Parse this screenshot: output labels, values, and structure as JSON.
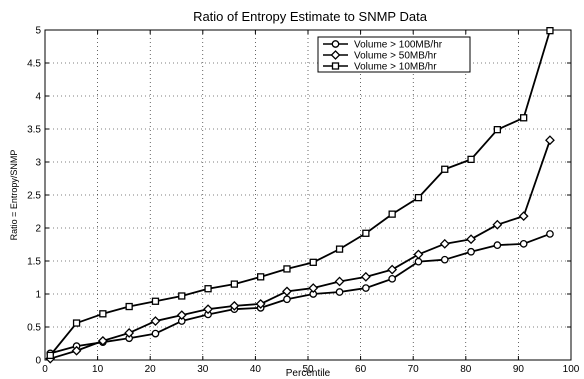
{
  "chart_data": {
    "type": "line",
    "title": "Ratio of Entropy Estimate to SNMP Data",
    "xlabel": "Percentile",
    "ylabel": "Ratio = Entropy/SNMP",
    "xlim": [
      0,
      100
    ],
    "ylim": [
      0,
      5
    ],
    "xticks": [
      0,
      10,
      20,
      30,
      40,
      50,
      60,
      70,
      80,
      90,
      100
    ],
    "yticks": [
      0,
      0.5,
      1,
      1.5,
      2,
      2.5,
      3,
      3.5,
      4,
      4.5,
      5
    ],
    "grid": true,
    "legend_position": "top-right",
    "x": [
      1,
      6,
      11,
      16,
      21,
      26,
      31,
      36,
      41,
      46,
      51,
      56,
      61,
      66,
      71,
      76,
      81,
      86,
      91,
      96
    ],
    "series": [
      {
        "name": "Volume > 100MB/hr",
        "marker": "circle",
        "values": [
          0.1,
          0.21,
          0.27,
          0.33,
          0.4,
          0.59,
          0.69,
          0.77,
          0.79,
          0.92,
          1.0,
          1.03,
          1.09,
          1.23,
          1.49,
          1.52,
          1.64,
          1.74,
          1.76,
          1.91
        ]
      },
      {
        "name": "Volume > 50MB/hr",
        "marker": "diamond",
        "values": [
          0.02,
          0.14,
          0.29,
          0.41,
          0.59,
          0.68,
          0.77,
          0.82,
          0.85,
          1.04,
          1.09,
          1.19,
          1.26,
          1.37,
          1.6,
          1.76,
          1.83,
          2.05,
          2.18,
          3.33
        ]
      },
      {
        "name": "Volume > 10MB/hr",
        "marker": "square",
        "values": [
          0.07,
          0.56,
          0.7,
          0.81,
          0.89,
          0.97,
          1.08,
          1.15,
          1.26,
          1.38,
          1.48,
          1.68,
          1.92,
          2.21,
          2.46,
          2.89,
          3.04,
          3.49,
          3.67,
          4.99
        ]
      }
    ]
  }
}
